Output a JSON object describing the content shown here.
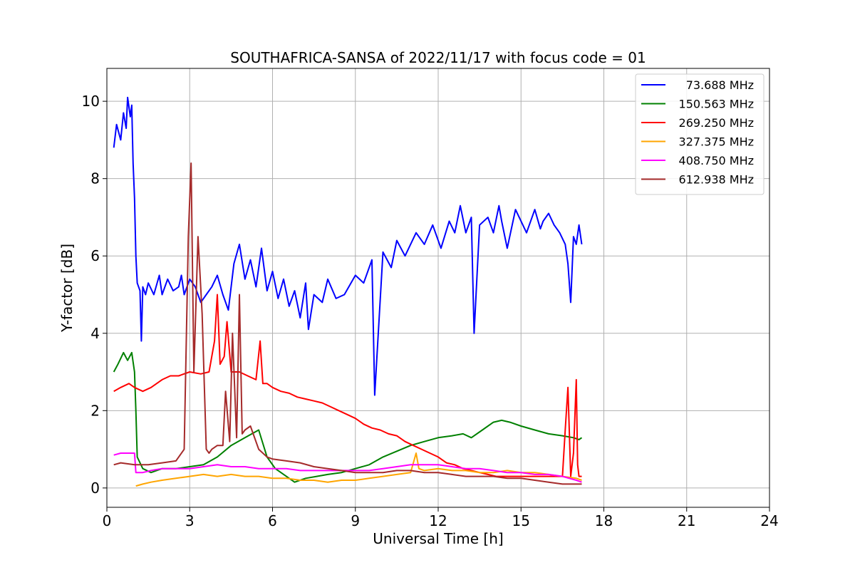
{
  "chart_data": {
    "type": "line",
    "title": "SOUTHAFRICA-SANSA of 2022/11/17 with focus code = 01",
    "xlabel": "Universal Time [h]",
    "ylabel": "Y-factor [dB]",
    "xlim": [
      0,
      24
    ],
    "ylim": [
      -0.5,
      10.85
    ],
    "xticks": [
      0,
      3,
      6,
      9,
      12,
      15,
      18,
      21,
      24
    ],
    "yticks": [
      0,
      2,
      4,
      6,
      8,
      10
    ],
    "grid": true,
    "legend_position": "top-right",
    "series": [
      {
        "name": "73.688 MHz",
        "color": "#0000ff",
        "x": [
          0.25,
          0.35,
          0.5,
          0.6,
          0.7,
          0.75,
          0.85,
          0.9,
          0.95,
          1.0,
          1.05,
          1.1,
          1.2,
          1.25,
          1.3,
          1.4,
          1.5,
          1.7,
          1.9,
          2.0,
          2.2,
          2.4,
          2.6,
          2.7,
          2.8,
          3.0,
          3.2,
          3.4,
          3.6,
          3.8,
          4.0,
          4.2,
          4.4,
          4.5,
          4.6,
          4.8,
          5.0,
          5.2,
          5.4,
          5.6,
          5.8,
          6.0,
          6.2,
          6.4,
          6.6,
          6.8,
          7.0,
          7.2,
          7.3,
          7.5,
          7.8,
          8.0,
          8.3,
          8.6,
          9.0,
          9.3,
          9.6,
          9.7,
          10.0,
          10.3,
          10.5,
          10.8,
          11.2,
          11.5,
          11.8,
          12.1,
          12.4,
          12.6,
          12.8,
          13.0,
          13.2,
          13.3,
          13.5,
          13.8,
          14.0,
          14.2,
          14.3,
          14.5,
          14.8,
          15.0,
          15.2,
          15.5,
          15.7,
          15.8,
          16.0,
          16.2,
          16.4,
          16.6,
          16.7,
          16.8,
          16.9,
          17.0,
          17.1,
          17.2
        ],
        "values": [
          8.8,
          9.4,
          9.0,
          9.7,
          9.3,
          10.1,
          9.6,
          9.9,
          8.4,
          7.5,
          6.0,
          5.3,
          5.1,
          3.8,
          5.2,
          5.0,
          5.3,
          5.0,
          5.5,
          5.0,
          5.4,
          5.1,
          5.2,
          5.5,
          5.0,
          5.4,
          5.2,
          4.8,
          5.0,
          5.2,
          5.5,
          5.0,
          4.6,
          5.2,
          5.8,
          6.3,
          5.4,
          5.9,
          5.2,
          6.2,
          5.1,
          5.6,
          4.9,
          5.4,
          4.7,
          5.1,
          4.4,
          5.3,
          4.1,
          5.0,
          4.8,
          5.4,
          4.9,
          5.0,
          5.5,
          5.3,
          5.9,
          2.4,
          6.1,
          5.7,
          6.4,
          6.0,
          6.6,
          6.3,
          6.8,
          6.2,
          6.9,
          6.6,
          7.3,
          6.6,
          7.0,
          4.0,
          6.8,
          7.0,
          6.6,
          7.3,
          6.9,
          6.2,
          7.2,
          6.9,
          6.6,
          7.2,
          6.7,
          6.9,
          7.1,
          6.8,
          6.6,
          6.3,
          5.8,
          4.8,
          6.5,
          6.3,
          6.8,
          6.3
        ]
      },
      {
        "name": "150.563 MHz",
        "color": "#008000",
        "x": [
          0.25,
          0.4,
          0.6,
          0.75,
          0.9,
          1.0,
          1.05,
          1.1,
          1.3,
          1.6,
          2.0,
          2.5,
          3.0,
          3.5,
          4.0,
          4.5,
          5.0,
          5.5,
          5.8,
          6.1,
          6.5,
          6.8,
          7.2,
          7.6,
          8.0,
          8.5,
          9.0,
          9.5,
          10.0,
          10.5,
          11.0,
          11.5,
          12.0,
          12.5,
          12.9,
          13.2,
          13.6,
          14.0,
          14.3,
          14.6,
          15.0,
          15.5,
          16.0,
          16.5,
          16.9,
          17.1,
          17.2
        ],
        "values": [
          3.0,
          3.2,
          3.5,
          3.3,
          3.5,
          3.0,
          2.0,
          0.8,
          0.5,
          0.4,
          0.5,
          0.5,
          0.55,
          0.6,
          0.8,
          1.1,
          1.3,
          1.5,
          0.8,
          0.5,
          0.3,
          0.15,
          0.25,
          0.3,
          0.35,
          0.4,
          0.5,
          0.6,
          0.8,
          0.95,
          1.1,
          1.2,
          1.3,
          1.35,
          1.4,
          1.3,
          1.5,
          1.7,
          1.75,
          1.7,
          1.6,
          1.5,
          1.4,
          1.35,
          1.3,
          1.25,
          1.3
        ]
      },
      {
        "name": "269.250 MHz",
        "color": "#ff0000",
        "x": [
          0.25,
          0.5,
          0.8,
          1.0,
          1.3,
          1.6,
          2.0,
          2.3,
          2.6,
          3.0,
          3.4,
          3.7,
          3.9,
          4.0,
          4.1,
          4.25,
          4.35,
          4.5,
          4.8,
          5.1,
          5.4,
          5.55,
          5.65,
          5.8,
          6.0,
          6.3,
          6.6,
          6.9,
          7.2,
          7.5,
          7.8,
          8.1,
          8.4,
          8.7,
          9.0,
          9.3,
          9.6,
          9.9,
          10.2,
          10.5,
          10.8,
          11.1,
          11.4,
          11.7,
          12.0,
          12.3,
          12.6,
          12.9,
          13.2,
          13.5,
          13.8,
          14.1,
          14.4,
          14.7,
          15.0,
          15.3,
          15.6,
          15.9,
          16.2,
          16.5,
          16.6,
          16.7,
          16.8,
          16.9,
          17.0,
          17.05,
          17.1,
          17.2
        ],
        "values": [
          2.5,
          2.6,
          2.7,
          2.6,
          2.5,
          2.6,
          2.8,
          2.9,
          2.9,
          3.0,
          2.95,
          3.0,
          3.8,
          5.0,
          3.2,
          3.4,
          4.3,
          3.0,
          3.0,
          2.9,
          2.8,
          3.8,
          2.7,
          2.7,
          2.6,
          2.5,
          2.45,
          2.35,
          2.3,
          2.25,
          2.2,
          2.1,
          2.0,
          1.9,
          1.8,
          1.65,
          1.55,
          1.5,
          1.4,
          1.35,
          1.2,
          1.1,
          1.0,
          0.9,
          0.8,
          0.65,
          0.6,
          0.5,
          0.45,
          0.4,
          0.35,
          0.3,
          0.3,
          0.3,
          0.3,
          0.3,
          0.3,
          0.3,
          0.3,
          0.3,
          1.5,
          2.6,
          0.3,
          0.9,
          2.8,
          0.6,
          0.3,
          0.3
        ]
      },
      {
        "name": "327.375 MHz",
        "color": "#ffa500",
        "x": [
          1.05,
          1.3,
          1.6,
          2.0,
          2.5,
          3.0,
          3.5,
          4.0,
          4.5,
          5.0,
          5.5,
          6.0,
          6.5,
          7.0,
          7.5,
          8.0,
          8.5,
          9.0,
          9.5,
          10.0,
          10.5,
          11.0,
          11.2,
          11.3,
          11.5,
          12.0,
          12.5,
          13.0,
          13.5,
          14.0,
          14.5,
          15.0,
          15.5,
          16.0,
          16.5,
          17.0,
          17.2
        ],
        "values": [
          0.05,
          0.1,
          0.15,
          0.2,
          0.25,
          0.3,
          0.35,
          0.3,
          0.35,
          0.3,
          0.3,
          0.25,
          0.25,
          0.2,
          0.2,
          0.15,
          0.2,
          0.2,
          0.25,
          0.3,
          0.35,
          0.4,
          0.9,
          0.5,
          0.45,
          0.5,
          0.45,
          0.45,
          0.4,
          0.4,
          0.45,
          0.4,
          0.4,
          0.35,
          0.3,
          0.25,
          0.2
        ]
      },
      {
        "name": "408.750 MHz",
        "color": "#ff00ff",
        "x": [
          0.25,
          0.5,
          0.8,
          1.0,
          1.05,
          1.3,
          1.6,
          2.0,
          2.5,
          3.0,
          3.5,
          4.0,
          4.5,
          5.0,
          5.5,
          6.0,
          6.5,
          7.0,
          7.5,
          8.0,
          8.5,
          9.0,
          9.5,
          10.0,
          10.5,
          11.0,
          11.5,
          12.0,
          12.5,
          13.0,
          13.5,
          14.0,
          14.5,
          15.0,
          15.5,
          16.0,
          16.5,
          17.0,
          17.2
        ],
        "values": [
          0.85,
          0.9,
          0.9,
          0.9,
          0.4,
          0.4,
          0.45,
          0.5,
          0.5,
          0.5,
          0.55,
          0.6,
          0.55,
          0.55,
          0.5,
          0.5,
          0.5,
          0.45,
          0.45,
          0.45,
          0.45,
          0.45,
          0.45,
          0.5,
          0.55,
          0.6,
          0.6,
          0.6,
          0.55,
          0.5,
          0.5,
          0.45,
          0.4,
          0.4,
          0.35,
          0.35,
          0.3,
          0.2,
          0.15
        ]
      },
      {
        "name": "612.938 MHz",
        "color": "#a52a2a",
        "x": [
          0.25,
          0.5,
          1.0,
          1.5,
          2.0,
          2.5,
          2.8,
          2.95,
          3.05,
          3.15,
          3.3,
          3.45,
          3.6,
          3.7,
          3.8,
          4.0,
          4.2,
          4.3,
          4.45,
          4.55,
          4.7,
          4.8,
          4.9,
          5.0,
          5.2,
          5.5,
          5.8,
          6.0,
          6.5,
          7.0,
          7.5,
          8.0,
          8.5,
          9.0,
          9.5,
          10.0,
          10.5,
          11.0,
          11.5,
          12.0,
          12.5,
          13.0,
          13.5,
          14.0,
          14.5,
          15.0,
          15.5,
          16.0,
          16.5,
          17.0,
          17.2
        ],
        "values": [
          0.6,
          0.65,
          0.6,
          0.6,
          0.65,
          0.7,
          1.0,
          6.5,
          8.4,
          3.0,
          6.5,
          4.5,
          1.0,
          0.9,
          1.0,
          1.1,
          1.1,
          2.5,
          1.2,
          4.0,
          1.3,
          5.0,
          1.4,
          1.5,
          1.6,
          1.0,
          0.8,
          0.75,
          0.7,
          0.65,
          0.55,
          0.5,
          0.45,
          0.4,
          0.4,
          0.4,
          0.45,
          0.45,
          0.4,
          0.4,
          0.35,
          0.3,
          0.3,
          0.3,
          0.25,
          0.25,
          0.2,
          0.15,
          0.1,
          0.1,
          0.1
        ]
      }
    ]
  }
}
